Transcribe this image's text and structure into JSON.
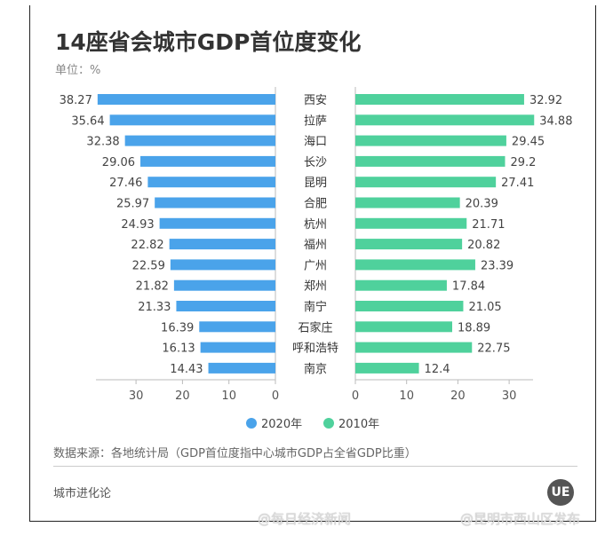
{
  "chart_data": {
    "type": "bar",
    "orientation": "horizontal-butterfly",
    "title": "14座省会城市GDP首位度变化",
    "unit_label": "单位：%",
    "categories": [
      "西安",
      "拉萨",
      "海口",
      "长沙",
      "昆明",
      "合肥",
      "杭州",
      "福州",
      "广州",
      "郑州",
      "南宁",
      "石家庄",
      "呼和浩特",
      "南京"
    ],
    "series": [
      {
        "name": "2020年",
        "color": "#4aa3ea",
        "values": [
          38.27,
          35.64,
          32.38,
          29.06,
          27.46,
          25.97,
          24.93,
          22.82,
          22.59,
          21.82,
          21.33,
          16.39,
          16.13,
          14.43
        ]
      },
      {
        "name": "2010年",
        "color": "#4fd19c",
        "values": [
          32.92,
          34.88,
          29.45,
          29.2,
          27.41,
          20.39,
          21.71,
          20.82,
          23.39,
          17.84,
          21.05,
          18.89,
          22.75,
          12.4
        ]
      }
    ],
    "left_axis": {
      "ticks": [
        "30",
        "20",
        "10",
        "0"
      ],
      "range": [
        0,
        40
      ],
      "reversed": true
    },
    "right_axis": {
      "ticks": [
        "0",
        "10",
        "20",
        "30"
      ],
      "range": [
        0,
        35
      ]
    },
    "grid": false,
    "legend_placement": "bottom"
  },
  "footer": {
    "source": "数据来源：各地统计局（GDP首位度指中心城市GDP占全省GDP比重）",
    "brand": "城市进化论",
    "logo": "UE"
  },
  "watermarks": [
    "@每日经济新闻",
    "@昆明市西山区发布"
  ]
}
